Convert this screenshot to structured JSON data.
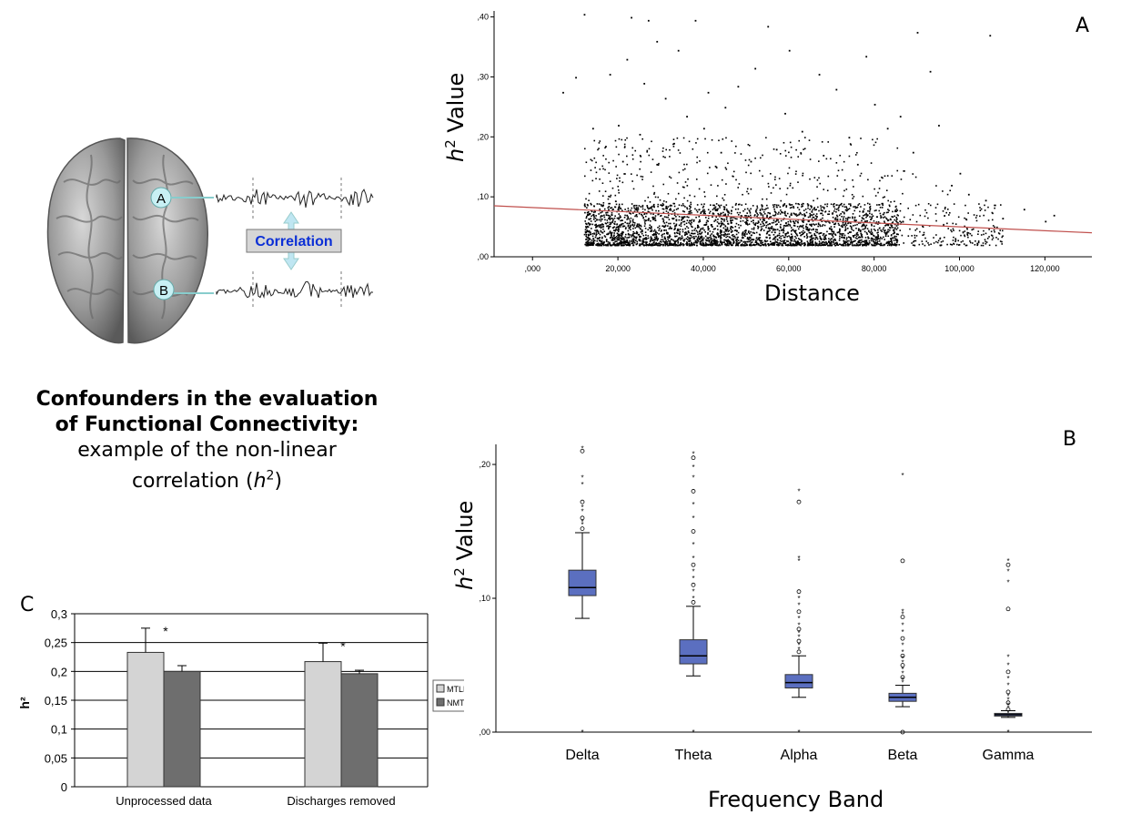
{
  "panel_labels": {
    "a": "A",
    "b": "B",
    "c": "C"
  },
  "illustration": {
    "node_a": "A",
    "node_b": "B",
    "correlation_label": "Correlation",
    "brain_color": "#9a9a9a",
    "node_color": "#c8f0f4",
    "label_color": "#0b2fd6"
  },
  "caption": {
    "bold_line1": "Confounders in the evaluation",
    "bold_line2": "of Functional Connectivity:",
    "line3": "example of the non-linear",
    "line4_prefix": "correlation (",
    "line4_symbol": "h",
    "line4_sup": "2",
    "line4_suffix": ")"
  },
  "chart_data": [
    {
      "id": "A",
      "type": "scatter",
      "ylabel_symbol": "h",
      "ylabel_sup": "2",
      "ylabel_text": " Value",
      "xlabel": "Distance",
      "xlim": [
        -9000,
        131000
      ],
      "ylim": [
        0,
        0.41
      ],
      "x_ticks": [
        ",000",
        "20,000",
        "40,000",
        "60,000",
        "80,000",
        "100,000",
        "120,000"
      ],
      "x_tick_values": [
        0,
        20000,
        40000,
        60000,
        80000,
        100000,
        120000
      ],
      "y_ticks": [
        ",00",
        ",10",
        ",20",
        ",30",
        ",40"
      ],
      "y_tick_values": [
        0,
        0.1,
        0.2,
        0.3,
        0.4
      ],
      "point_color": "#000000",
      "fit_line_color": "#c0504d",
      "fit_line": {
        "x": [
          -9000,
          131000
        ],
        "y": [
          0.085,
          0.04
        ]
      },
      "points": [
        [
          12000,
          0.405
        ],
        [
          23000,
          0.4
        ],
        [
          27000,
          0.395
        ],
        [
          38000,
          0.395
        ],
        [
          55000,
          0.385
        ],
        [
          60000,
          0.345
        ],
        [
          107000,
          0.37
        ],
        [
          90000,
          0.375
        ],
        [
          78000,
          0.335
        ],
        [
          93000,
          0.31
        ],
        [
          29000,
          0.36
        ],
        [
          34000,
          0.345
        ],
        [
          22000,
          0.33
        ],
        [
          18000,
          0.305
        ],
        [
          10000,
          0.3
        ],
        [
          7000,
          0.275
        ],
        [
          26000,
          0.29
        ],
        [
          31000,
          0.265
        ],
        [
          48000,
          0.285
        ],
        [
          52000,
          0.315
        ],
        [
          67000,
          0.305
        ],
        [
          71000,
          0.28
        ],
        [
          41000,
          0.275
        ],
        [
          45000,
          0.25
        ],
        [
          80000,
          0.255
        ],
        [
          95000,
          0.22
        ],
        [
          86000,
          0.235
        ],
        [
          59000,
          0.24
        ],
        [
          36000,
          0.235
        ],
        [
          14000,
          0.215
        ],
        [
          20000,
          0.22
        ],
        [
          25000,
          0.205
        ],
        [
          40000,
          0.215
        ],
        [
          63000,
          0.21
        ],
        [
          74000,
          0.2
        ],
        [
          83000,
          0.215
        ],
        [
          100000,
          0.14
        ],
        [
          106000,
          0.095
        ],
        [
          115000,
          0.08
        ],
        [
          120000,
          0.06
        ],
        [
          122000,
          0.07
        ],
        [
          110000,
          0.065
        ],
        [
          17000,
          0.185
        ],
        [
          33000,
          0.19
        ],
        [
          44000,
          0.175
        ],
        [
          57000,
          0.18
        ],
        [
          68000,
          0.17
        ],
        [
          89000,
          0.175
        ],
        [
          21000,
          0.16
        ],
        [
          29000,
          0.155
        ],
        [
          51000,
          0.16
        ],
        [
          76000,
          0.155
        ],
        [
          98000,
          0.12
        ],
        [
          102000,
          0.105
        ]
      ],
      "dense_cloud": {
        "x_range": [
          12000,
          110000
        ],
        "core_y_range": [
          0.02,
          0.09
        ],
        "upper_y": 0.2,
        "count": 3600
      }
    },
    {
      "id": "B",
      "type": "box",
      "ylabel_symbol": "h",
      "ylabel_sup": "2",
      "ylabel_text": " Value",
      "xlabel": "Frequency Band",
      "ylim": [
        0,
        0.215
      ],
      "y_ticks": [
        ",00",
        ",10",
        ",20"
      ],
      "y_tick_values": [
        0,
        0.1,
        0.2
      ],
      "box_color": "#5b6fc0",
      "categories": [
        "Delta",
        "Theta",
        "Alpha",
        "Beta",
        "Gamma"
      ],
      "boxes": [
        {
          "whisker_low": 0.085,
          "q1": 0.102,
          "median": 0.108,
          "q3": 0.121,
          "whisker_high": 0.149,
          "outliers": [
            0.212,
            0.21,
            0.19,
            0.185,
            0.172,
            0.168,
            0.165,
            0.16,
            0.157,
            0.155,
            0.152,
            0.0
          ]
        },
        {
          "whisker_low": 0.042,
          "q1": 0.051,
          "median": 0.057,
          "q3": 0.069,
          "whisker_high": 0.094,
          "outliers": [
            0.208,
            0.205,
            0.198,
            0.19,
            0.18,
            0.17,
            0.16,
            0.15,
            0.14,
            0.13,
            0.125,
            0.12,
            0.115,
            0.11,
            0.105,
            0.1,
            0.097,
            0.0
          ]
        },
        {
          "whisker_low": 0.026,
          "q1": 0.033,
          "median": 0.037,
          "q3": 0.043,
          "whisker_high": 0.057,
          "outliers": [
            0.18,
            0.172,
            0.13,
            0.128,
            0.105,
            0.1,
            0.095,
            0.09,
            0.085,
            0.08,
            0.077,
            0.074,
            0.071,
            0.068,
            0.065,
            0.062,
            0.06,
            0.0
          ]
        },
        {
          "whisker_low": 0.019,
          "q1": 0.023,
          "median": 0.026,
          "q3": 0.029,
          "whisker_high": 0.035,
          "outliers": [
            0.192,
            0.128,
            0.09,
            0.088,
            0.086,
            0.08,
            0.075,
            0.07,
            0.065,
            0.06,
            0.057,
            0.055,
            0.052,
            0.05,
            0.047,
            0.044,
            0.041,
            0.039,
            0.037,
            0.0
          ]
        },
        {
          "whisker_low": 0.011,
          "q1": 0.012,
          "median": 0.013,
          "q3": 0.014,
          "whisker_high": 0.016,
          "outliers": [
            0.128,
            0.125,
            0.12,
            0.112,
            0.092,
            0.056,
            0.05,
            0.045,
            0.04,
            0.035,
            0.03,
            0.027,
            0.024,
            0.022,
            0.02,
            0.018,
            0.017,
            0.0
          ]
        }
      ]
    },
    {
      "id": "C",
      "type": "bar",
      "ylabel": "h²",
      "ylim": [
        0,
        0.3
      ],
      "y_ticks": [
        "0",
        "0,05",
        "0,1",
        "0,15",
        "0,2",
        "0,25",
        "0,3"
      ],
      "y_tick_values": [
        0,
        0.05,
        0.1,
        0.15,
        0.2,
        0.25,
        0.3
      ],
      "categories": [
        "Unprocessed data",
        "Discharges removed"
      ],
      "significance": [
        "*",
        "*"
      ],
      "legend_position": "right",
      "series": [
        {
          "name": "MTLE",
          "values": [
            0.233,
            0.217
          ],
          "errors": [
            0.042,
            0.032
          ],
          "color": "#d4d4d4"
        },
        {
          "name": "NMTLE",
          "values": [
            0.2,
            0.196
          ],
          "errors": [
            0.01,
            0.006
          ],
          "color": "#6e6e6e"
        }
      ]
    }
  ]
}
